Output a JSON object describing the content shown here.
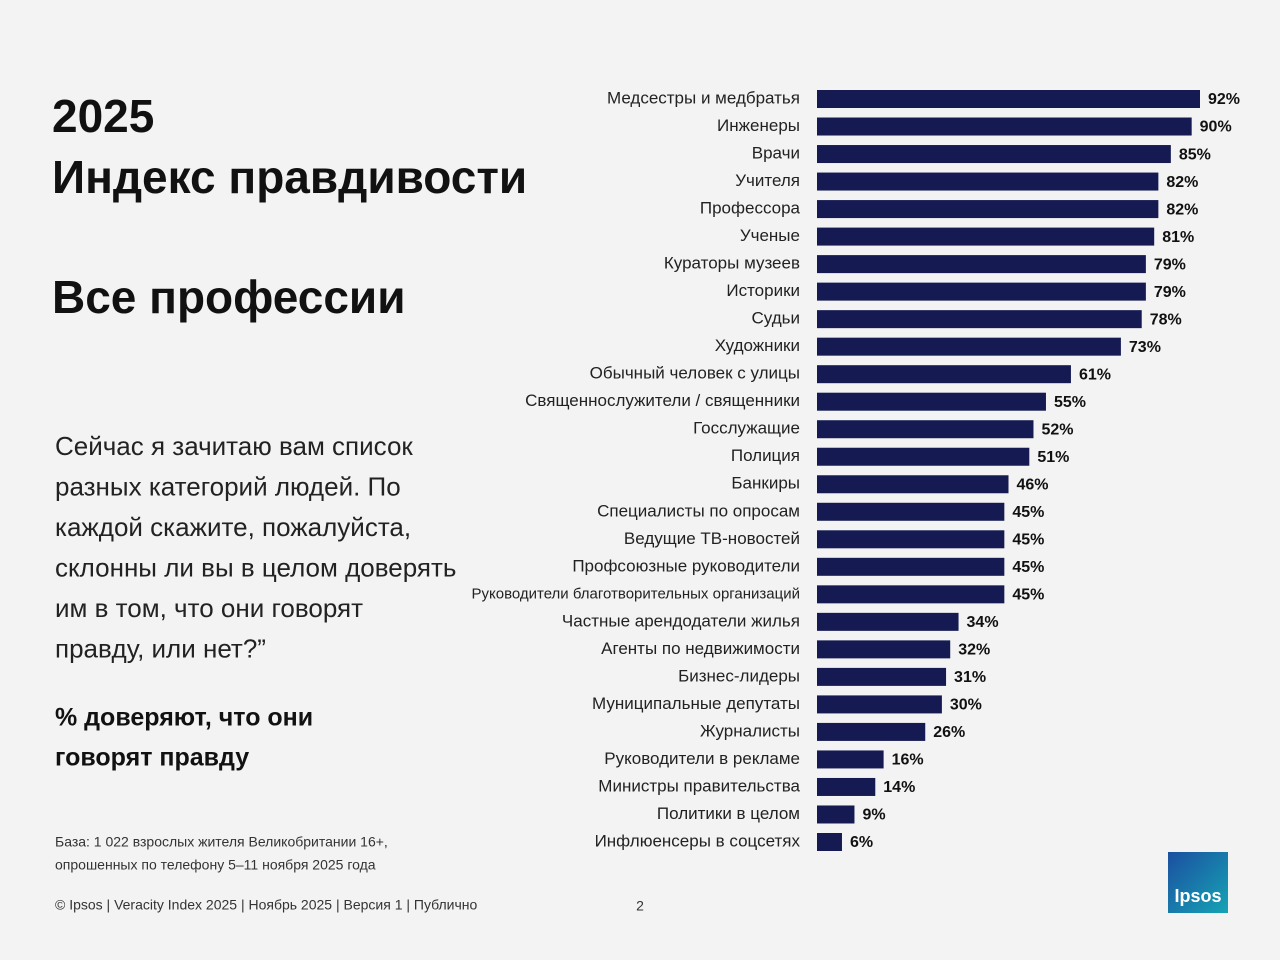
{
  "header": {
    "year": "2025",
    "title": "Индекс правдивости",
    "subtitle": "Все профессии"
  },
  "question": [
    "Сейчас я зачитаю вам список",
    "разных категорий людей. По",
    "каждой скажите, пожалуйста,",
    "склонны ли вы в целом доверять",
    "им в том, что они говорят",
    "правду, или нет?”"
  ],
  "measure": [
    "% доверяют, что они",
    "говорят правду"
  ],
  "base": [
    "База: 1 022 взрослых жителя Великобритании 16+,",
    "опрошенных по телефону 5–11 ноября 2025 года"
  ],
  "footer": "© Ipsos | Veracity Index 2025 | Ноябрь 2025 | Версия 1 | Публично",
  "page_number": "2",
  "logo": "Ipsos",
  "chart_data": {
    "type": "bar",
    "orientation": "horizontal",
    "color": "#151b52",
    "categories": [
      "Медсестры и медбратья",
      "Инженеры",
      "Врачи",
      "Учителя",
      "Профессора",
      "Ученые",
      "Кураторы музеев",
      "Историки",
      "Судьи",
      "Художники",
      "Обычный человек с улицы",
      "Священнослужители / священники",
      "Госслужащие",
      "Полиция",
      "Банкиры",
      "Специалисты по опросам",
      "Ведущие ТВ-новостей",
      "Профсоюзные руководители",
      "Руководители благотворительных организаций",
      "Частные арендодатели жилья",
      "Агенты по недвижимости",
      "Бизнес-лидеры",
      "Муниципальные депутаты",
      "Журналисты",
      "Руководители в рекламе",
      "Министры правительства",
      "Политики в целом",
      "Инфлюенсеры в соцсетях"
    ],
    "values": [
      92,
      90,
      85,
      82,
      82,
      81,
      79,
      79,
      78,
      73,
      61,
      55,
      52,
      51,
      46,
      45,
      45,
      45,
      45,
      34,
      32,
      31,
      30,
      26,
      16,
      14,
      9,
      6
    ],
    "value_labels": [
      "92%",
      "90%",
      "85%",
      "82%",
      "82%",
      "81%",
      "79%",
      "79%",
      "78%",
      "73%",
      "61%",
      "55%",
      "52%",
      "51%",
      "46%",
      "45%",
      "45%",
      "45%",
      "45%",
      "34%",
      "32%",
      "31%",
      "30%",
      "26%",
      "16%",
      "14%",
      "9%",
      "6%"
    ]
  }
}
